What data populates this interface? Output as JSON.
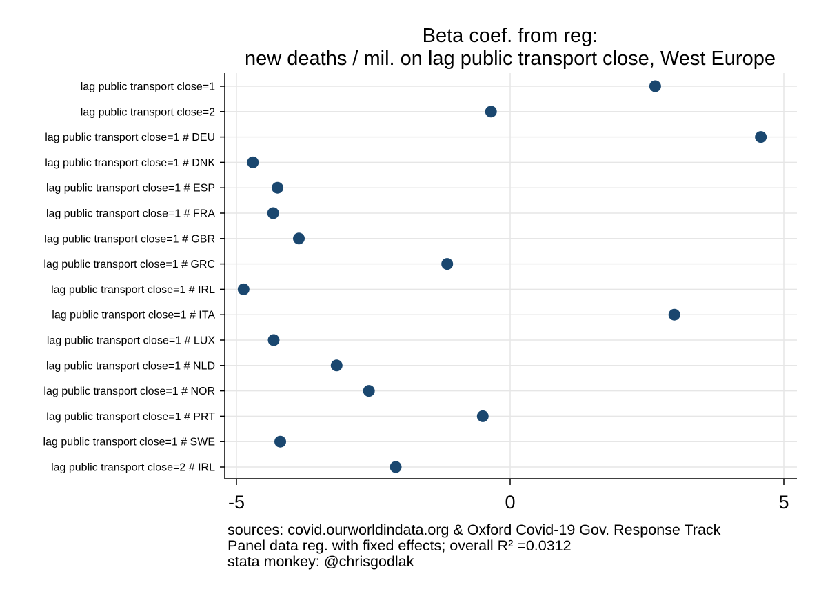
{
  "chart_data": {
    "type": "scatter",
    "title": [
      "Beta coef. from reg:",
      "new deaths / mil. on lag public transport close, West Europe"
    ],
    "xlabel": "",
    "ylabel": "",
    "xlim": [
      -5.2,
      5.2
    ],
    "xticks": [
      -5,
      0,
      5
    ],
    "xtick_labels": [
      "-5",
      "0",
      "5"
    ],
    "grid": true,
    "marker_color": "#1a476f",
    "categories": [
      "lag public transport close=1",
      "lag public transport close=2",
      "lag public transport close=1 # DEU",
      "lag public transport close=1 # DNK",
      "lag public transport close=1 # ESP",
      "lag public transport close=1 # FRA",
      "lag public transport close=1 # GBR",
      "lag public transport close=1 # GRC",
      "lag public transport close=1 # IRL",
      "lag public transport close=1 # ITA",
      "lag public transport close=1 # LUX",
      "lag public transport close=1 # NLD",
      "lag public transport close=1 # NOR",
      "lag public transport close=1 # PRT",
      "lag public transport close=1 # SWE",
      "lag public transport close=2 # IRL"
    ],
    "values": [
      2.65,
      -0.35,
      4.58,
      -4.7,
      -4.25,
      -4.33,
      -3.86,
      -1.15,
      -4.87,
      3.0,
      -4.32,
      -3.17,
      -2.58,
      -0.5,
      -4.2,
      -2.09
    ],
    "notes": [
      "sources: covid.ourworldindata.org & Oxford Covid-19 Gov. Response Track",
      "Panel data reg. with fixed effects; overall R² =0.0312",
      "stata monkey: @chrisgodlak"
    ]
  }
}
